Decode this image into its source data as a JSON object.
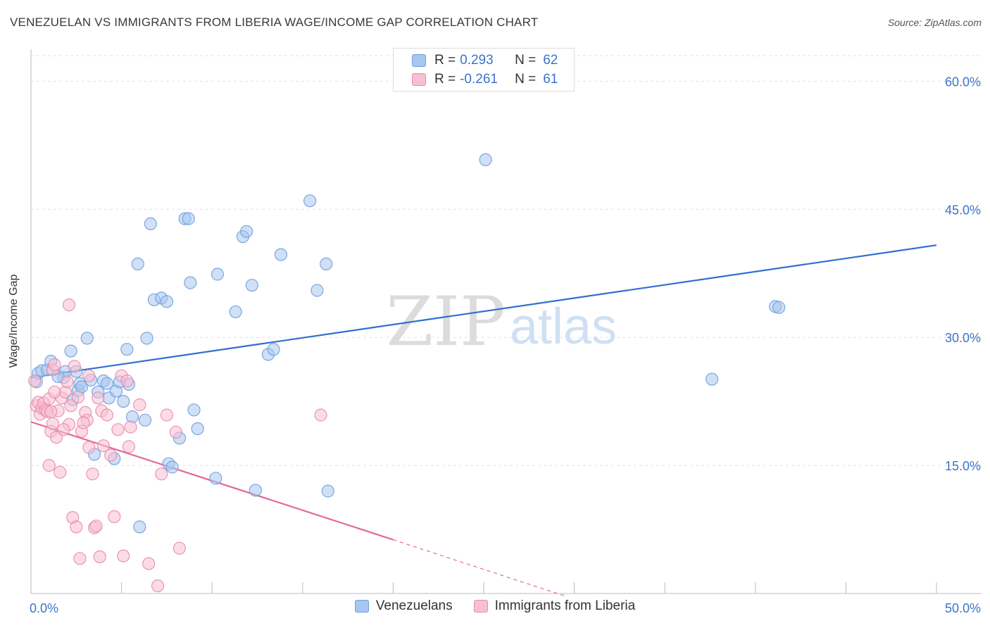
{
  "header": {
    "title": "VENEZUELAN VS IMMIGRANTS FROM LIBERIA WAGE/INCOME GAP CORRELATION CHART",
    "source": "Source: ZipAtlas.com"
  },
  "watermark": {
    "zip": "ZIP",
    "atlas": "atlas"
  },
  "legend": {
    "rows": [
      {
        "r_label": "R =",
        "r_value": "0.293",
        "n_label": "N =",
        "n_value": "62",
        "color": "#a8c6f0",
        "border": "#6f9fdc"
      },
      {
        "r_label": "R =",
        "r_value": "-0.261",
        "n_label": "N =",
        "n_value": "61",
        "color": "#f7c0d2",
        "border": "#e98aab"
      }
    ]
  },
  "bottom_legend": [
    {
      "label": "Venezuelans",
      "color": "#a8c6f0",
      "border": "#6f9fdc"
    },
    {
      "label": "Immigrants from Liberia",
      "color": "#f7c0d2",
      "border": "#e98aab"
    }
  ],
  "chart_data": {
    "type": "scatter",
    "title": "VENEZUELAN VS IMMIGRANTS FROM LIBERIA WAGE/INCOME GAP CORRELATION CHART",
    "xlabel": "",
    "ylabel": "Wage/Income Gap",
    "xlim": [
      0,
      50
    ],
    "ylim": [
      0,
      63
    ],
    "x_tick_labels": [
      {
        "value": 0,
        "label": "0.0%"
      },
      {
        "value": 50,
        "label": "50.0%"
      }
    ],
    "x_minor_ticks": [
      5,
      10,
      15,
      20,
      25,
      30,
      35,
      40,
      45,
      50
    ],
    "y_ticks": [
      {
        "value": 15,
        "label": "15.0%"
      },
      {
        "value": 30,
        "label": "30.0%"
      },
      {
        "value": 45,
        "label": "45.0%"
      },
      {
        "value": 60,
        "label": "60.0%"
      }
    ],
    "grid": true,
    "legend_position": "top-center",
    "series": [
      {
        "name": "Venezuelans",
        "color": "#6f9fdc",
        "fill": "#a8c6f0",
        "trend": {
          "x": [
            0,
            50
          ],
          "y": [
            25.3,
            40.8
          ],
          "color": "#2f6fd0"
        },
        "points": [
          [
            0.3,
            24.8
          ],
          [
            0.4,
            25.8
          ],
          [
            0.6,
            26.1
          ],
          [
            0.9,
            26.2
          ],
          [
            1.1,
            27.2
          ],
          [
            1.8,
            25.3
          ],
          [
            1.9,
            26.0
          ],
          [
            2.2,
            28.4
          ],
          [
            2.3,
            22.7
          ],
          [
            2.6,
            23.8
          ],
          [
            2.7,
            24.6
          ],
          [
            2.8,
            24.2
          ],
          [
            3.1,
            29.9
          ],
          [
            3.3,
            25.0
          ],
          [
            3.5,
            16.3
          ],
          [
            3.7,
            23.6
          ],
          [
            4.0,
            24.9
          ],
          [
            4.2,
            24.6
          ],
          [
            4.3,
            22.9
          ],
          [
            4.6,
            15.8
          ],
          [
            4.7,
            23.7
          ],
          [
            4.9,
            24.8
          ],
          [
            5.1,
            22.5
          ],
          [
            5.3,
            28.6
          ],
          [
            5.4,
            24.5
          ],
          [
            5.6,
            20.7
          ],
          [
            5.9,
            38.6
          ],
          [
            6.0,
            7.8
          ],
          [
            6.3,
            20.3
          ],
          [
            6.4,
            29.9
          ],
          [
            6.6,
            43.3
          ],
          [
            6.8,
            34.4
          ],
          [
            7.2,
            34.6
          ],
          [
            7.5,
            34.2
          ],
          [
            7.6,
            15.2
          ],
          [
            7.8,
            14.8
          ],
          [
            8.2,
            18.2
          ],
          [
            8.5,
            43.9
          ],
          [
            8.7,
            43.9
          ],
          [
            8.8,
            36.4
          ],
          [
            9.0,
            21.5
          ],
          [
            9.2,
            19.3
          ],
          [
            10.2,
            13.5
          ],
          [
            10.3,
            37.4
          ],
          [
            11.3,
            33.0
          ],
          [
            11.7,
            41.8
          ],
          [
            11.9,
            42.4
          ],
          [
            12.2,
            36.1
          ],
          [
            12.4,
            12.1
          ],
          [
            13.1,
            28.0
          ],
          [
            13.4,
            28.6
          ],
          [
            13.8,
            39.7
          ],
          [
            15.4,
            46.0
          ],
          [
            15.8,
            35.5
          ],
          [
            16.3,
            38.6
          ],
          [
            16.4,
            12.0
          ],
          [
            25.1,
            50.8
          ],
          [
            37.6,
            25.1
          ],
          [
            41.1,
            33.6
          ],
          [
            41.3,
            33.5
          ],
          [
            1.5,
            25.4
          ],
          [
            2.5,
            26.0
          ]
        ]
      },
      {
        "name": "Immigrants from Liberia",
        "color": "#e98aab",
        "fill": "#f7c0d2",
        "trend": {
          "x": [
            0,
            20
          ],
          "y": [
            20.1,
            6.3
          ],
          "dash_to": {
            "x": 29.5,
            "y": -0.3
          },
          "color": "#e2689a"
        },
        "points": [
          [
            0.2,
            24.9
          ],
          [
            0.3,
            22.0
          ],
          [
            0.4,
            22.4
          ],
          [
            0.5,
            21.0
          ],
          [
            0.6,
            21.7
          ],
          [
            0.7,
            22.3
          ],
          [
            0.8,
            21.5
          ],
          [
            0.9,
            21.3
          ],
          [
            1.0,
            22.8
          ],
          [
            1.1,
            19.0
          ],
          [
            1.2,
            26.2
          ],
          [
            1.3,
            26.8
          ],
          [
            1.0,
            15.0
          ],
          [
            1.2,
            19.9
          ],
          [
            1.4,
            18.3
          ],
          [
            1.6,
            14.2
          ],
          [
            1.5,
            21.4
          ],
          [
            1.7,
            22.9
          ],
          [
            1.9,
            23.6
          ],
          [
            2.0,
            24.8
          ],
          [
            2.1,
            19.8
          ],
          [
            2.2,
            22.0
          ],
          [
            2.3,
            8.9
          ],
          [
            2.1,
            33.8
          ],
          [
            2.4,
            26.6
          ],
          [
            2.5,
            7.8
          ],
          [
            2.6,
            23.0
          ],
          [
            2.7,
            4.1
          ],
          [
            2.8,
            19.0
          ],
          [
            3.0,
            21.2
          ],
          [
            3.1,
            20.3
          ],
          [
            3.2,
            25.5
          ],
          [
            3.2,
            17.1
          ],
          [
            3.4,
            14.0
          ],
          [
            3.5,
            7.7
          ],
          [
            3.7,
            22.9
          ],
          [
            3.8,
            4.3
          ],
          [
            3.9,
            21.4
          ],
          [
            4.0,
            17.3
          ],
          [
            4.2,
            20.9
          ],
          [
            4.4,
            16.2
          ],
          [
            4.6,
            9.0
          ],
          [
            4.8,
            19.2
          ],
          [
            5.0,
            25.5
          ],
          [
            5.1,
            4.4
          ],
          [
            5.3,
            24.9
          ],
          [
            5.4,
            17.2
          ],
          [
            5.5,
            19.5
          ],
          [
            6.0,
            22.1
          ],
          [
            6.5,
            3.5
          ],
          [
            7.0,
            0.9
          ],
          [
            7.2,
            14.0
          ],
          [
            7.5,
            20.9
          ],
          [
            8.0,
            18.9
          ],
          [
            8.2,
            5.3
          ],
          [
            16.0,
            20.9
          ],
          [
            1.3,
            23.6
          ],
          [
            1.8,
            19.2
          ],
          [
            3.6,
            7.9
          ],
          [
            1.1,
            21.3
          ],
          [
            2.9,
            20.0
          ]
        ]
      }
    ]
  }
}
